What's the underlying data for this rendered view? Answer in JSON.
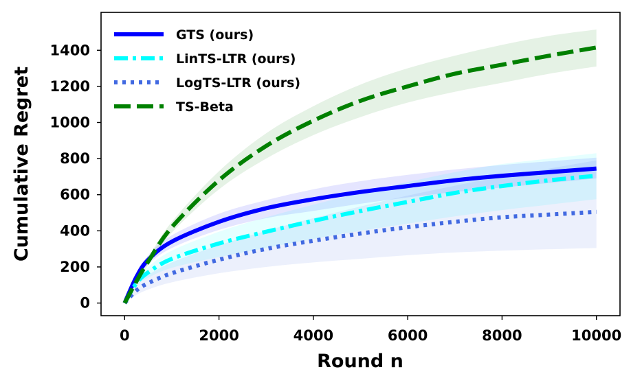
{
  "chart_data": {
    "type": "line",
    "xlabel": "Round n",
    "ylabel": "Cumulative Regret",
    "xlim": [
      -500,
      10500
    ],
    "ylim": [
      -70,
      1610
    ],
    "xticks": [
      0,
      2000,
      4000,
      6000,
      8000,
      10000
    ],
    "yticks": [
      0,
      200,
      400,
      600,
      800,
      1000,
      1200,
      1400
    ],
    "grid": false,
    "legend_position": "top-left",
    "x": [
      0,
      250,
      500,
      1000,
      2000,
      3000,
      4000,
      5000,
      6000,
      7000,
      8000,
      9000,
      10000
    ],
    "series": [
      {
        "name": "GTS (ours)",
        "color": "#0000ff",
        "style": "solid",
        "values": [
          0,
          145,
          240,
          340,
          450,
          525,
          575,
          615,
          648,
          680,
          705,
          725,
          745
        ],
        "band_low": [
          0,
          130,
          215,
          305,
          405,
          470,
          510,
          550,
          585,
          615,
          640,
          665,
          690
        ],
        "band_high": [
          0,
          160,
          265,
          375,
          495,
          570,
          630,
          675,
          710,
          740,
          765,
          785,
          805
        ]
      },
      {
        "name": "LinTS-LTR (ours)",
        "color": "#00ffff",
        "style": "dashdot",
        "values": [
          0,
          110,
          170,
          245,
          330,
          395,
          455,
          510,
          560,
          610,
          648,
          680,
          705
        ],
        "band_low": [
          0,
          95,
          140,
          195,
          255,
          305,
          355,
          400,
          440,
          480,
          515,
          545,
          575
        ],
        "band_high": [
          0,
          125,
          200,
          290,
          395,
          475,
          545,
          610,
          670,
          725,
          770,
          800,
          830
        ]
      },
      {
        "name": "LogTS-LTR (ours)",
        "color": "#4169e1",
        "style": "dotted",
        "values": [
          0,
          70,
          110,
          165,
          240,
          300,
          345,
          385,
          420,
          450,
          475,
          490,
          505
        ],
        "band_low": [
          0,
          45,
          75,
          115,
          165,
          200,
          225,
          245,
          265,
          280,
          290,
          298,
          305
        ],
        "band_high": [
          0,
          100,
          155,
          225,
          320,
          400,
          470,
          535,
          595,
          650,
          700,
          745,
          790
        ]
      },
      {
        "name": "TS-Beta",
        "color": "#008000",
        "style": "dashed",
        "values": [
          0,
          120,
          230,
          420,
          680,
          870,
          1010,
          1120,
          1200,
          1270,
          1320,
          1370,
          1415
        ],
        "band_low": [
          0,
          110,
          210,
          390,
          630,
          800,
          930,
          1030,
          1110,
          1170,
          1220,
          1270,
          1310
        ],
        "band_high": [
          0,
          130,
          250,
          450,
          730,
          940,
          1090,
          1210,
          1300,
          1370,
          1430,
          1480,
          1515
        ]
      }
    ]
  }
}
